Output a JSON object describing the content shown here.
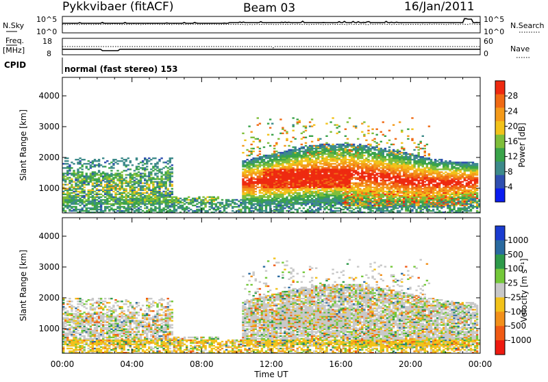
{
  "header": {
    "station": "Pykkvibaer (fitACF)",
    "beam": "Beam 03",
    "date": "16/Jan/2011"
  },
  "strips": {
    "nsky_label": "N.Sky",
    "nsky_ticks": [
      "10^5",
      "10^0"
    ],
    "nsearch_label": "N.Search",
    "nsearch_ticks": [
      "10^5",
      "10^0"
    ],
    "freq_label_1": "Freq.",
    "freq_label_2": "[MHz]",
    "freq_ticks": [
      "18",
      "8"
    ],
    "nave_label": "Nave",
    "nave_ticks": [
      "60",
      "0"
    ],
    "cpid_label": "CPID",
    "cpid_text": "normal (fast stereo) 153"
  },
  "chart_data": [
    {
      "type": "heatmap",
      "name": "power-panel",
      "ylabel": "Slant Range [km]",
      "yticks": [
        "1000",
        "2000",
        "3000",
        "4000"
      ],
      "ylim": [
        200,
        4600
      ],
      "xticks": [
        "00:00",
        "04:00",
        "08:00",
        "12:00",
        "16:00",
        "20:00",
        "00:00"
      ],
      "colorbar_label": "Power [dB]",
      "colorbar_ticks": [
        "4",
        "8",
        "12",
        "16",
        "20",
        "24",
        "28"
      ],
      "colorbar_colors": [
        "#0a1cf0",
        "#2f4fb0",
        "#3d8a8a",
        "#3aa34a",
        "#7fbe3a",
        "#f2c21a",
        "#f49a1a",
        "#f06a14",
        "#ee2a10"
      ]
    },
    {
      "type": "heatmap",
      "name": "velocity-panel",
      "ylabel": "Slant Range [km]",
      "yticks": [
        "1000",
        "2000",
        "3000",
        "4000"
      ],
      "ylim": [
        200,
        4600
      ],
      "xticks": [
        "00:00",
        "04:00",
        "08:00",
        "12:00",
        "16:00",
        "20:00",
        "00:00"
      ],
      "xlabel": "Time UT",
      "colorbar_label": "Velocity [m s⁻¹]",
      "colorbar_ticks": [
        "1000",
        "500",
        "100",
        "25",
        "-25",
        "-100",
        "-500",
        "-1000"
      ],
      "colorbar_colors": [
        "#1a3cd0",
        "#2a6aa0",
        "#2e9a4a",
        "#74c83a",
        "#c8c8c8",
        "#f2c21a",
        "#f2901a",
        "#f05a14",
        "#ee1a10"
      ]
    }
  ]
}
